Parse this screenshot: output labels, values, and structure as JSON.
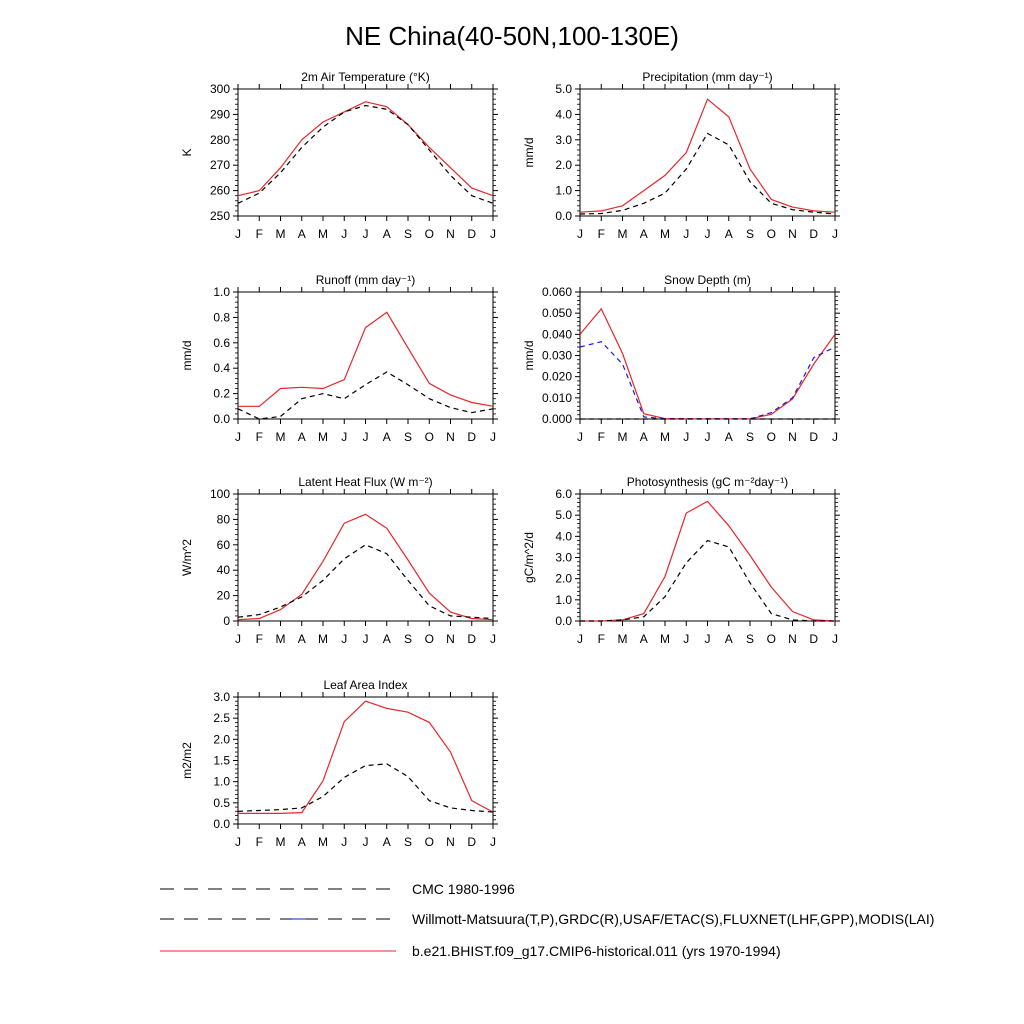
{
  "figure": {
    "title": "NE China(40-50N,100-130E)"
  },
  "months": [
    "J",
    "F",
    "M",
    "A",
    "M",
    "J",
    "J",
    "A",
    "S",
    "O",
    "N",
    "D",
    "J"
  ],
  "legend": [
    {
      "label": "CMC 1980-1996",
      "style": "dash-black"
    },
    {
      "label": "Willmott-Matsuura(T,P),GRDC(R),USAF/ETAC(S),FLUXNET(LHF,GPP),MODIS(LAI)",
      "style": "dash-black-blue"
    },
    {
      "label": "b.e21.BHIST.f09_g17.CMIP6-historical.011 (yrs 1970-1994)",
      "style": "solid-red"
    }
  ],
  "colors": {
    "model": "#e8262a",
    "cmc": "#000000",
    "obs": "#1a1ad6",
    "axis": "#000000"
  },
  "chart_data": [
    {
      "type": "line",
      "title": "2m Air Temperature (°K)",
      "ylabel": "K",
      "ylim": [
        250,
        300
      ],
      "yticks": [
        "250",
        "260",
        "270",
        "280",
        "290",
        "300"
      ],
      "series": [
        {
          "style": "solid-red",
          "values": [
            258,
            260,
            269,
            280,
            287,
            291,
            295,
            293,
            286,
            277,
            269,
            261,
            258
          ]
        },
        {
          "style": "dash-black",
          "values": [
            255,
            259,
            267,
            277,
            285,
            291,
            293.5,
            292,
            286,
            276,
            266,
            258,
            255
          ]
        }
      ]
    },
    {
      "type": "line",
      "title": "Precipitation (mm day⁻¹)",
      "ylabel": "mm/d",
      "ylim": [
        0,
        5
      ],
      "yticks": [
        "0.0",
        "1.0",
        "2.0",
        "3.0",
        "4.0",
        "5.0"
      ],
      "series": [
        {
          "style": "solid-red",
          "values": [
            0.15,
            0.2,
            0.4,
            1.0,
            1.6,
            2.5,
            4.6,
            3.9,
            1.85,
            0.65,
            0.35,
            0.2,
            0.15
          ]
        },
        {
          "style": "dash-black",
          "values": [
            0.08,
            0.1,
            0.22,
            0.5,
            0.9,
            1.85,
            3.25,
            2.8,
            1.35,
            0.5,
            0.25,
            0.15,
            0.08
          ]
        }
      ]
    },
    {
      "type": "line",
      "title": "Runoff (mm day⁻¹)",
      "ylabel": "mm/d",
      "ylim": [
        0,
        1
      ],
      "yticks": [
        "0.0",
        "0.2",
        "0.4",
        "0.6",
        "0.8",
        "1.0"
      ],
      "series": [
        {
          "style": "solid-red",
          "values": [
            0.1,
            0.1,
            0.24,
            0.25,
            0.24,
            0.31,
            0.72,
            0.84,
            0.56,
            0.28,
            0.19,
            0.13,
            0.1
          ]
        },
        {
          "style": "dash-black",
          "values": [
            0.08,
            0.0,
            0.02,
            0.16,
            0.2,
            0.16,
            0.27,
            0.37,
            0.27,
            0.16,
            0.09,
            0.05,
            0.08
          ]
        }
      ]
    },
    {
      "type": "line",
      "title": "Snow Depth (m)",
      "ylabel": "mm/d",
      "ylim": [
        0,
        0.06
      ],
      "yticks": [
        "0.000",
        "0.010",
        "0.020",
        "0.030",
        "0.040",
        "0.050",
        "0.060"
      ],
      "series": [
        {
          "style": "solid-red",
          "values": [
            0.04,
            0.052,
            0.031,
            0.0025,
            0.0002,
            0.0001,
            0.0001,
            0.0001,
            0.0001,
            0.0022,
            0.0095,
            0.026,
            0.04
          ]
        },
        {
          "style": "dash-blue",
          "values": [
            0.034,
            0.0365,
            0.026,
            0.001,
            0.0001,
            0.0001,
            0.0001,
            0.0001,
            0.0001,
            0.003,
            0.01,
            0.029,
            0.034
          ]
        },
        {
          "style": "dash-black",
          "values": [
            0,
            0,
            0,
            0,
            0,
            0,
            0,
            0,
            0,
            0,
            0,
            0,
            0
          ]
        }
      ]
    },
    {
      "type": "line",
      "title": "Latent Heat Flux (W m⁻²)",
      "ylabel": "W/m^2",
      "ylim": [
        0,
        100
      ],
      "yticks": [
        "0",
        "20",
        "40",
        "60",
        "80",
        "100"
      ],
      "series": [
        {
          "style": "solid-red",
          "values": [
            1,
            2,
            9,
            21,
            47,
            77,
            84,
            73,
            48,
            22,
            7,
            2,
            1
          ]
        },
        {
          "style": "dash-black",
          "values": [
            3,
            5,
            11,
            19,
            32,
            49,
            60,
            53,
            32,
            12,
            4,
            3,
            2
          ]
        }
      ]
    },
    {
      "type": "line",
      "title": "Photosynthesis (gC m⁻²day⁻¹)",
      "ylabel": "gC/m^2/d",
      "ylim": [
        0,
        6
      ],
      "yticks": [
        "0.0",
        "1.0",
        "2.0",
        "3.0",
        "4.0",
        "5.0",
        "6.0"
      ],
      "series": [
        {
          "style": "solid-red",
          "values": [
            0.0,
            0.0,
            0.05,
            0.35,
            2.1,
            5.1,
            5.65,
            4.5,
            3.1,
            1.6,
            0.45,
            0.05,
            0.0
          ]
        },
        {
          "style": "dash-black",
          "values": [
            0.0,
            0.0,
            0.05,
            0.2,
            1.15,
            2.75,
            3.8,
            3.5,
            1.8,
            0.35,
            0.05,
            0.0,
            0.0
          ]
        }
      ]
    },
    {
      "type": "line",
      "title": "Leaf Area Index",
      "ylabel": "m2/m2",
      "ylim": [
        0,
        3
      ],
      "yticks": [
        "0.0",
        "0.5",
        "1.0",
        "1.5",
        "2.0",
        "2.5",
        "3.0"
      ],
      "series": [
        {
          "style": "solid-red",
          "values": [
            0.25,
            0.25,
            0.25,
            0.27,
            1.02,
            2.42,
            2.9,
            2.73,
            2.64,
            2.4,
            1.7,
            0.55,
            0.28
          ]
        },
        {
          "style": "dash-black",
          "values": [
            0.3,
            0.32,
            0.34,
            0.38,
            0.65,
            1.1,
            1.38,
            1.42,
            1.12,
            0.55,
            0.38,
            0.32,
            0.28
          ]
        }
      ]
    }
  ]
}
